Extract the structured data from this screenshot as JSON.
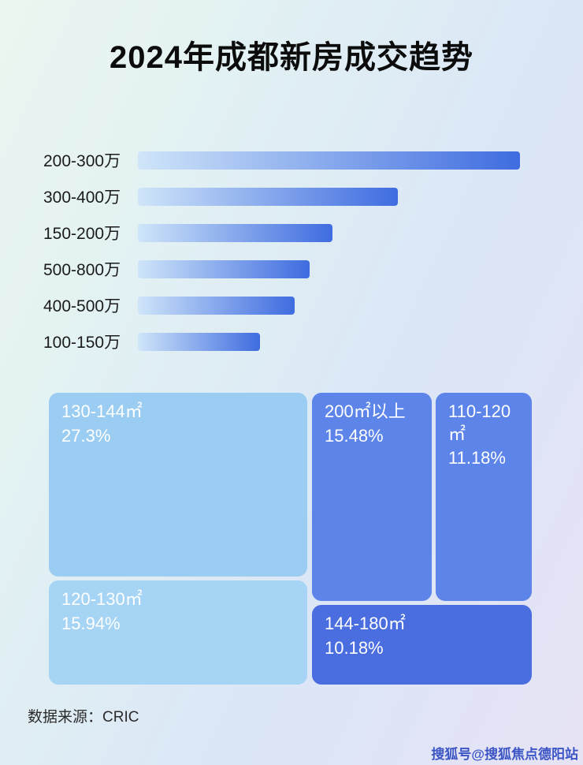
{
  "page": {
    "title": "2024年成都新房成交趋势",
    "source_label": "数据来源：CRIC",
    "watermark": "搜狐号@搜狐焦点德阳站"
  },
  "colors": {
    "bar_gradient_start": "#cfe5f9",
    "bar_gradient_end": "#3f6ce0",
    "title_text": "#0c0c0c",
    "block_text": "#ffffff"
  },
  "chart_data": [
    {
      "type": "bar",
      "orientation": "horizontal",
      "title": "2024年成都新房成交趋势",
      "categories": [
        "200-300万",
        "300-400万",
        "150-200万",
        "500-800万",
        "400-500万",
        "100-150万"
      ],
      "values": [
        100,
        68,
        51,
        45,
        41,
        32
      ],
      "value_note": "no numeric axis shown; values are bar lengths as % of longest bar",
      "xlabel": "",
      "ylabel": "",
      "grid": false,
      "legend": false
    },
    {
      "type": "treemap",
      "title": "",
      "items": [
        {
          "label": "130-144㎡",
          "value": "27.3%",
          "color": "#9bcdf3"
        },
        {
          "label": "200㎡以上",
          "value": "15.48%",
          "color": "#5c84e9"
        },
        {
          "label": "120-130㎡",
          "value": "15.94%",
          "color": "#a6d4f4"
        },
        {
          "label": "110-120㎡",
          "value": "11.18%",
          "color": "#5c84e9"
        },
        {
          "label": "144-180㎡",
          "value": "10.18%",
          "color": "#4a6ee0"
        }
      ]
    }
  ]
}
